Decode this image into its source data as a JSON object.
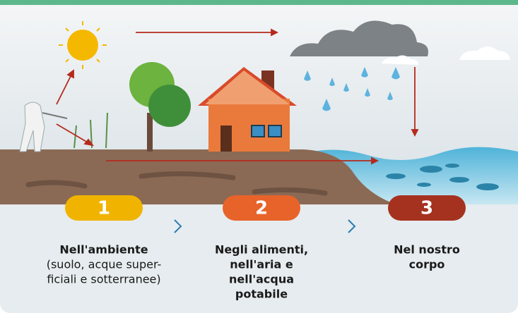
{
  "steps": [
    {
      "number": "1",
      "title_lines": [
        "Nell'ambiente"
      ],
      "text_lines": [
        "(suolo, acque super-",
        "ficiali e sotterranee)"
      ]
    },
    {
      "number": "2",
      "title_lines": [
        "Negli alimenti,",
        "nell'aria e",
        "nell'acqua",
        "potabile"
      ],
      "text_lines": []
    },
    {
      "number": "3",
      "title_lines": [
        "Nel nostro",
        "corpo"
      ],
      "text_lines": []
    }
  ]
}
